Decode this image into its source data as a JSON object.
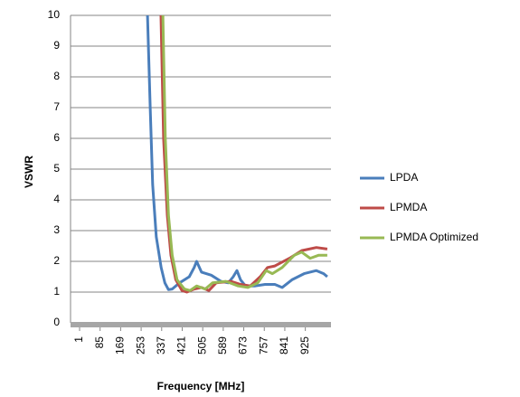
{
  "chart_data": {
    "type": "line",
    "x_label": "Frequency [MHz]",
    "y_label": "VSWR",
    "xlim": [
      1,
      1030
    ],
    "xticks": [
      1,
      85,
      169,
      253,
      337,
      421,
      505,
      589,
      673,
      757,
      841,
      925
    ],
    "ylim": [
      0,
      10
    ],
    "yticks": [
      0,
      1,
      2,
      3,
      4,
      5,
      6,
      7,
      8,
      9,
      10
    ],
    "grid": true,
    "legend": "right",
    "series": [
      {
        "name": "LPDA",
        "color": "#4a7ebb",
        "x": [
          279,
          290,
          300,
          315,
          335,
          350,
          365,
          380,
          410,
          450,
          470,
          480,
          500,
          540,
          580,
          610,
          630,
          645,
          660,
          680,
          720,
          760,
          800,
          830,
          870,
          920,
          970,
          1000,
          1015
        ],
        "values": [
          10,
          7,
          4.5,
          2.8,
          1.8,
          1.3,
          1.08,
          1.1,
          1.3,
          1.5,
          1.8,
          2.0,
          1.65,
          1.55,
          1.35,
          1.3,
          1.5,
          1.7,
          1.4,
          1.2,
          1.2,
          1.25,
          1.25,
          1.15,
          1.4,
          1.6,
          1.7,
          1.6,
          1.5
        ]
      },
      {
        "name": "LPMDA",
        "color": "#be4b48",
        "x": [
          334,
          345,
          360,
          375,
          395,
          420,
          440,
          470,
          500,
          530,
          560,
          620,
          660,
          700,
          740,
          770,
          800,
          860,
          910,
          970,
          1015
        ],
        "values": [
          10,
          6,
          3.5,
          2.2,
          1.4,
          1.05,
          1.0,
          1.1,
          1.15,
          1.05,
          1.3,
          1.35,
          1.25,
          1.2,
          1.5,
          1.8,
          1.85,
          2.1,
          2.35,
          2.45,
          2.4
        ]
      },
      {
        "name": "LPMDA Optimized",
        "color": "#98b954",
        "x": [
          342,
          352,
          365,
          380,
          400,
          430,
          453,
          480,
          515,
          545,
          600,
          650,
          690,
          730,
          765,
          790,
          830,
          880,
          910,
          945,
          980,
          1015
        ],
        "values": [
          10,
          6,
          3.5,
          2.2,
          1.4,
          1.1,
          1.05,
          1.2,
          1.1,
          1.3,
          1.35,
          1.2,
          1.15,
          1.3,
          1.7,
          1.6,
          1.8,
          2.2,
          2.3,
          2.1,
          2.2,
          2.2
        ]
      }
    ]
  }
}
